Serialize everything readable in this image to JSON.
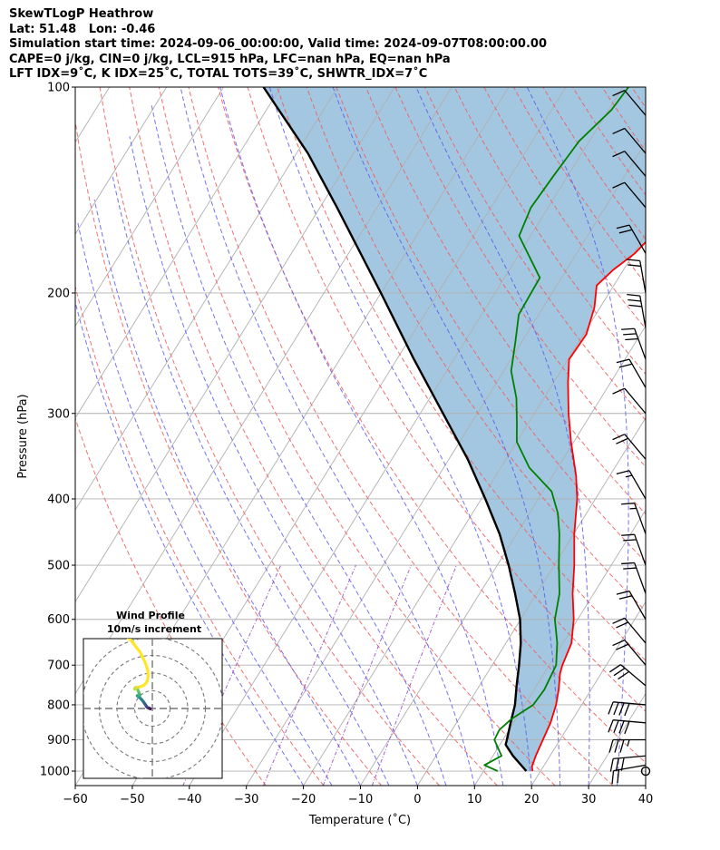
{
  "title": {
    "line1": "SkewTLogP Heathrow",
    "line2": "Lat: 51.48   Lon: -0.46",
    "line3": "Simulation start time: 2024-09-06_00:00:00, Valid time: 2024-09-07T08:00:00.00",
    "line4": "CAPE=0 j/kg, CIN=0 j/kg, LCL=915 hPa, LFC=nan hPa, EQ=nan hPa",
    "line5": "LFT IDX=9˚C, K IDX=25˚C, TOTAL TOTS=39˚C, SHWTR_IDX=7˚C"
  },
  "chart_data": {
    "type": "skewt",
    "xlabel": "Temperature (˚C)",
    "ylabel": "Pressure (hPa)",
    "xlim": [
      -60,
      40
    ],
    "ylim": [
      1050,
      100
    ],
    "x_ticks": [
      -60,
      -50,
      -40,
      -30,
      -20,
      -10,
      0,
      10,
      20,
      30,
      40
    ],
    "y_ticks": [
      100,
      200,
      300,
      400,
      500,
      600,
      700,
      800,
      900,
      1000
    ],
    "grid": true,
    "colors": {
      "temperature": "#ff0000",
      "dewpoint": "#008000",
      "parcel": "#000000",
      "shade": "#a3c7e1",
      "dry_adiabat": "#f06060",
      "moist_adiabat": "#5a5af0",
      "mixing_ratio": "#9a4fc0",
      "isotherm": "#b0b0b0"
    },
    "temperature": {
      "p": [
        1000,
        985,
        950,
        900,
        850,
        800,
        760,
        720,
        700,
        650,
        600,
        550,
        500,
        450,
        400,
        370,
        330,
        300,
        270,
        250,
        230,
        210,
        195,
        185,
        175,
        160,
        145,
        135,
        125,
        115,
        108,
        100
      ],
      "t": [
        18.6,
        18,
        17.5,
        17,
        16.5,
        15.5,
        14.3,
        12.8,
        12.3,
        11.5,
        9.3,
        6.3,
        3.5,
        0.1,
        -3.2,
        -5.9,
        -10.5,
        -14,
        -17.5,
        -19.8,
        -19.5,
        -21,
        -23,
        -21.8,
        -19.8,
        -18.2,
        -16,
        -17.5,
        -18.5,
        -18.2,
        -21.6,
        -24.8
      ]
    },
    "dewpoint": {
      "p": [
        1000,
        980,
        950,
        900,
        870,
        840,
        800,
        760,
        700,
        650,
        600,
        550,
        500,
        450,
        420,
        390,
        360,
        330,
        310,
        285,
        260,
        235,
        215,
        190,
        165,
        150,
        135,
        120,
        108,
        100
      ],
      "t": [
        12.5,
        9.5,
        11.5,
        8.5,
        8.3,
        9.2,
        11.5,
        11.8,
        11.2,
        9,
        6,
        4,
        0.8,
        -2.5,
        -5,
        -8.5,
        -15,
        -20,
        -22,
        -24.8,
        -28.7,
        -31.2,
        -33.5,
        -33.8,
        -42,
        -43,
        -42.5,
        -41.8,
        -39.5,
        -39
      ]
    },
    "parcel": {
      "p": [
        1000,
        950,
        915,
        900,
        850,
        800,
        750,
        700,
        650,
        600,
        550,
        500,
        450,
        400,
        350,
        300,
        250,
        200,
        150,
        125,
        100
      ],
      "t": [
        17.5,
        13.5,
        11,
        10.7,
        9.5,
        8.3,
        6.5,
        4.7,
        2.6,
        -0.1,
        -3.8,
        -8,
        -13,
        -19.3,
        -26.7,
        -36,
        -47,
        -60,
        -77,
        -88,
        -103
      ]
    },
    "wind_barbs": {
      "p": [
        1000,
        980,
        950,
        900,
        850,
        800,
        750,
        700,
        650,
        600,
        550,
        500,
        450,
        400,
        350,
        300,
        275,
        250,
        225,
        200,
        175,
        150,
        135,
        125,
        110
      ],
      "speed_kt": [
        0,
        20,
        30,
        35,
        40,
        40,
        30,
        20,
        20,
        20,
        20,
        20,
        15,
        15,
        20,
        10,
        20,
        30,
        30,
        20,
        20,
        10,
        10,
        10,
        10
      ],
      "direction_deg": [
        0,
        260,
        265,
        270,
        275,
        275,
        310,
        320,
        320,
        330,
        340,
        340,
        340,
        330,
        320,
        320,
        330,
        340,
        350,
        350,
        330,
        320,
        320,
        320,
        320
      ]
    },
    "inset": {
      "title_line1": "Wind Profile",
      "title_line2": "10m/s increment",
      "rings_ms": [
        10,
        20,
        30,
        40
      ],
      "hodograph_colormap": [
        "#440154",
        "#3b528b",
        "#21918c",
        "#5ec962",
        "#fde725"
      ],
      "hodograph_uv": [
        [
          -1.2,
          -0.2
        ],
        [
          -1.8,
          0.2
        ],
        [
          -2.3,
          0.3
        ],
        [
          -2.8,
          0.6
        ],
        [
          -3.3,
          1.1
        ],
        [
          -3.8,
          2.0
        ],
        [
          -4.5,
          3.0
        ],
        [
          -5.2,
          4.0
        ],
        [
          -6.0,
          5.0
        ],
        [
          -7.0,
          6.0
        ],
        [
          -8.5,
          7.2
        ],
        [
          -8.0,
          7.0
        ],
        [
          -7.0,
          7.5
        ],
        [
          -7.6,
          9.0
        ],
        [
          -8.0,
          10.0
        ],
        [
          -8.5,
          11.0
        ],
        [
          -9.5,
          11.8
        ],
        [
          -10.0,
          11.0
        ],
        [
          -9.0,
          11.8
        ],
        [
          -6.5,
          12.4
        ],
        [
          -5.0,
          13.0
        ],
        [
          -3.7,
          14.2
        ],
        [
          -2.8,
          15.8
        ],
        [
          -2.4,
          18.5
        ],
        [
          -2.6,
          21.5
        ],
        [
          -4.0,
          26.0
        ],
        [
          -5.5,
          29.0
        ],
        [
          -7.0,
          32.0
        ],
        [
          -9.0,
          34.5
        ],
        [
          -10.5,
          36.5
        ],
        [
          -12.0,
          38.5
        ],
        [
          -14.0,
          40.0
        ]
      ]
    }
  }
}
